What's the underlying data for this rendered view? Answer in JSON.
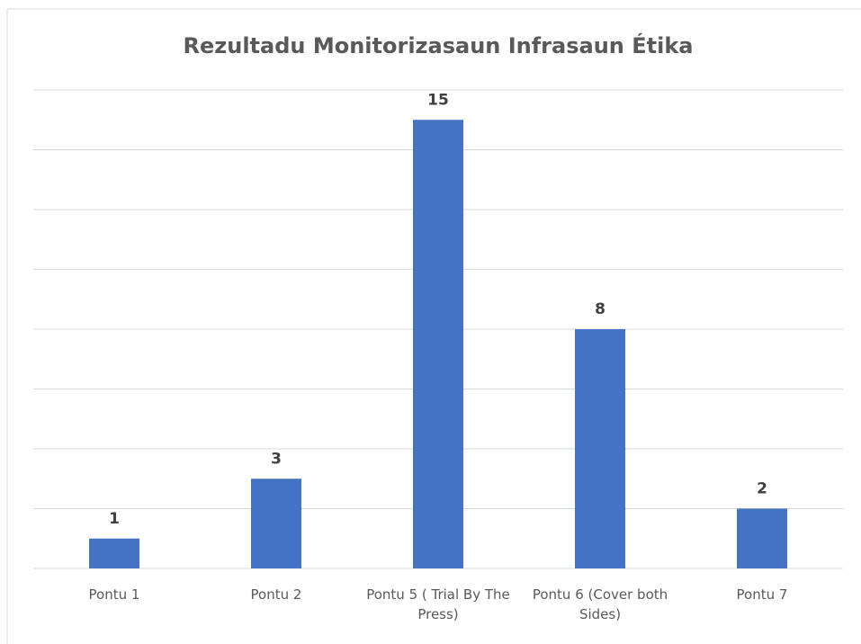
{
  "chart_data": {
    "type": "bar",
    "title": "Rezultadu Monitorizasaun Infrasaun Étika",
    "categories": [
      "Pontu 1",
      "Pontu 2",
      "Pontu 5 ( Trial By The Press)",
      "Pontu 6  (Cover both Sides)",
      "Pontu 7"
    ],
    "values": [
      1,
      3,
      15,
      8,
      2
    ],
    "color": "#4472c4",
    "ylim": [
      0,
      16
    ],
    "yticks": [
      0,
      2,
      4,
      6,
      8,
      10,
      12,
      14,
      16
    ],
    "grid": true
  }
}
